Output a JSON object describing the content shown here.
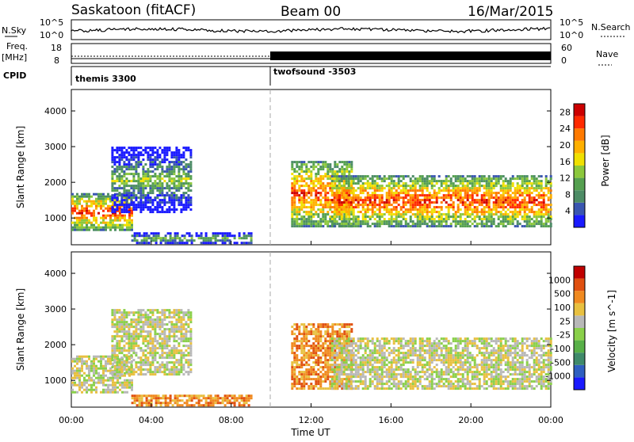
{
  "header": {
    "station": "Saskatoon (fitACF)",
    "beam": "Beam 00",
    "date": "16/Mar/2015"
  },
  "strips": {
    "nsky_label": "N.Sky",
    "nsearch_label": "N.Search",
    "nsky_ticks": [
      "10^5",
      "10^0"
    ],
    "nsearch_ticks": [
      "10^5",
      "10^0"
    ],
    "freq_label": "Freq.",
    "freq_unit": "[MHz]",
    "freq_ticks": [
      "18",
      "8"
    ],
    "nave_label": "Nave",
    "nave_ticks": [
      "60",
      "0"
    ],
    "cpid_label": "CPID",
    "cpid_modes": [
      {
        "name": "themis 3300",
        "start": "00:00"
      },
      {
        "name": "twofsound -3503",
        "start": "10:00"
      }
    ]
  },
  "colors": {
    "power_scale": [
      "#1a1aff",
      "#3a56b0",
      "#4d8c66",
      "#55a050",
      "#8cc83c",
      "#f0e000",
      "#ffb000",
      "#ff7a00",
      "#ff2a00",
      "#cc0000"
    ],
    "velocity_scale": [
      "#1a1aff",
      "#2f5fc0",
      "#3f8a6a",
      "#58b048",
      "#8ad04a",
      "#b8b8b8",
      "#e8c040",
      "#f08a20",
      "#e05010",
      "#c00000"
    ]
  },
  "chart_data": [
    {
      "type": "heatmap",
      "name": "power",
      "ylabel": "Slant Range [km]",
      "yticks": [
        "1000",
        "2000",
        "3000",
        "4000"
      ],
      "ylim": [
        250,
        4600
      ],
      "xlim": [
        "00:00",
        "24:00"
      ],
      "colorbar": {
        "label": "Power [dB]",
        "ticks": [
          "4",
          "8",
          "12",
          "16",
          "20",
          "24",
          "28"
        ],
        "range": [
          0,
          30
        ]
      },
      "echo_bands": [
        {
          "t_start_h": 0.0,
          "t_end_h": 3.0,
          "range_min_km": 700,
          "range_max_km": 1700,
          "peak_db": 26
        },
        {
          "t_start_h": 2.0,
          "t_end_h": 6.0,
          "range_min_km": 1200,
          "range_max_km": 3000,
          "peak_db": 14
        },
        {
          "t_start_h": 3.0,
          "t_end_h": 9.0,
          "range_min_km": 300,
          "range_max_km": 600,
          "peak_db": 12
        },
        {
          "t_start_h": 11.0,
          "t_end_h": 14.0,
          "range_min_km": 800,
          "range_max_km": 2600,
          "peak_db": 28
        },
        {
          "t_start_h": 13.0,
          "t_end_h": 24.0,
          "range_min_km": 800,
          "range_max_km": 2200,
          "peak_db": 26
        }
      ]
    },
    {
      "type": "heatmap",
      "name": "velocity",
      "ylabel": "Slant Range [km]",
      "yticks": [
        "1000",
        "2000",
        "3000",
        "4000"
      ],
      "ylim": [
        250,
        4600
      ],
      "xlim": [
        "00:00",
        "24:00"
      ],
      "xlabel": "Time UT",
      "xticks": [
        "00:00",
        "04:00",
        "08:00",
        "12:00",
        "16:00",
        "20:00",
        "00:00"
      ],
      "colorbar": {
        "label": "Velocity [m s^-1]",
        "ticks": [
          "1000",
          "500",
          "100",
          "25",
          "-25",
          "-100",
          "-500",
          "-1000"
        ]
      },
      "echo_bands": [
        {
          "t_start_h": 0.0,
          "t_end_h": 3.0,
          "range_min_km": 700,
          "range_max_km": 1700,
          "velocity_ms": 0
        },
        {
          "t_start_h": 2.0,
          "t_end_h": 6.0,
          "range_min_km": 1200,
          "range_max_km": 3000,
          "velocity_ms": 0
        },
        {
          "t_start_h": 3.0,
          "t_end_h": 9.0,
          "range_min_km": 300,
          "range_max_km": 600,
          "velocity_ms": -200
        },
        {
          "t_start_h": 11.0,
          "t_end_h": 14.0,
          "range_min_km": 800,
          "range_max_km": 2600,
          "velocity_ms": -80
        },
        {
          "t_start_h": 13.0,
          "t_end_h": 24.0,
          "range_min_km": 800,
          "range_max_km": 2200,
          "velocity_ms": 0
        }
      ]
    }
  ]
}
